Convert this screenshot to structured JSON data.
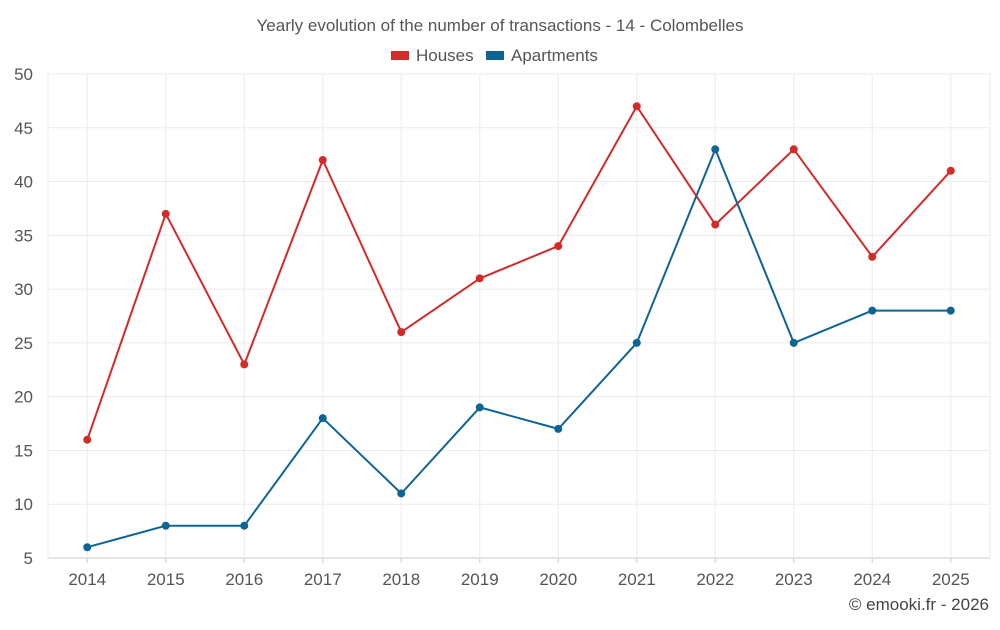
{
  "chart_data": {
    "type": "line",
    "title": "Yearly evolution of the number of transactions - 14 - Colombelles",
    "categories": [
      "2014",
      "2015",
      "2016",
      "2017",
      "2018",
      "2019",
      "2020",
      "2021",
      "2022",
      "2023",
      "2024",
      "2025"
    ],
    "series": [
      {
        "name": "Houses",
        "color": "#d32a2a",
        "values": [
          16,
          37,
          23,
          42,
          26,
          31,
          34,
          47,
          36,
          43,
          33,
          41
        ]
      },
      {
        "name": "Apartments",
        "color": "#0f6496",
        "values": [
          6,
          8,
          8,
          18,
          11,
          19,
          17,
          25,
          43,
          25,
          28,
          28
        ]
      }
    ],
    "ylim": [
      5,
      50
    ],
    "yticks": [
      5,
      10,
      15,
      20,
      25,
      30,
      35,
      40,
      45,
      50
    ],
    "xlabel": "",
    "ylabel": "",
    "grid": true,
    "legend": "top-center"
  },
  "credit": "© emooki.fr - 2026"
}
